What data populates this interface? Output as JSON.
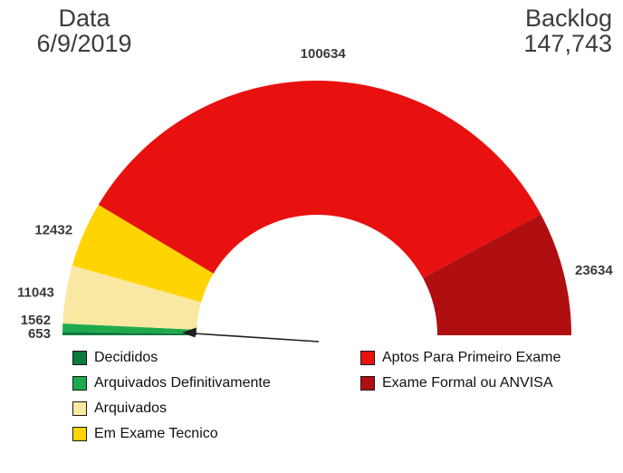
{
  "header": {
    "date_label": "Data",
    "date_value": "6/9/2019",
    "backlog_label": "Backlog",
    "backlog_value": "147,743"
  },
  "chart_data": {
    "type": "pie",
    "variant": "semicircle-donut",
    "start_angle_deg": 180,
    "end_angle_deg": 0,
    "legend_position": "bottom",
    "segments": [
      {
        "id": "decididos",
        "label": "Decididos",
        "value": 653,
        "color": "#0c7b3d",
        "legend_column": 1
      },
      {
        "id": "arquivados-definitivamente",
        "label": "Arquivados Definitivamente",
        "value": 1562,
        "color": "#1fa94e",
        "legend_column": 1
      },
      {
        "id": "arquivados",
        "label": "Arquivados",
        "value": 11043,
        "color": "#f8e8a2",
        "legend_column": 1
      },
      {
        "id": "em-exame-tecnico",
        "label": "Em Exame Tecnico",
        "value": 12432,
        "color": "#ffd400",
        "legend_column": 1
      },
      {
        "id": "aptos-para-primeiro-exame",
        "label": "Aptos Para Primeiro Exame",
        "value": 100634,
        "color": "#e8110f",
        "legend_column": 2
      },
      {
        "id": "exame-formal-ou-anvisa",
        "label": "Exame Formal ou ANVISA",
        "value": 23634,
        "color": "#b00f12",
        "legend_column": 2
      }
    ],
    "annotation": {
      "arrow_points_to": "smallest segments (Decididos / Arquivados Definitivamente)"
    }
  }
}
